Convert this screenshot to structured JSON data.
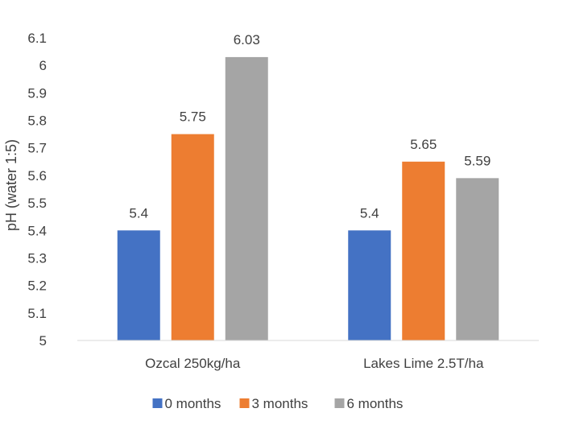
{
  "chart_data": {
    "type": "bar",
    "title": "",
    "xlabel": "",
    "ylabel": "pH (water 1:5)",
    "ylim": [
      5,
      6.1
    ],
    "yticks": [
      5,
      5.1,
      5.2,
      5.3,
      5.4,
      5.5,
      5.6,
      5.7,
      5.8,
      5.9,
      6,
      6.1
    ],
    "ytick_labels": [
      "5",
      "5.1",
      "5.2",
      "5.3",
      "5.4",
      "5.5",
      "5.6",
      "5.7",
      "5.8",
      "5.9",
      "6",
      "6.1"
    ],
    "grid": false,
    "legend_position": "bottom",
    "categories": [
      "Ozcal 250kg/ha",
      "Lakes Lime 2.5T/ha"
    ],
    "series": [
      {
        "name": "0 months",
        "color": "#4472C4",
        "values": [
          5.4,
          5.4
        ],
        "labels": [
          "5.4",
          "5.4"
        ]
      },
      {
        "name": "3 months",
        "color": "#ED7D31",
        "values": [
          5.75,
          5.65
        ],
        "labels": [
          "5.75",
          "5.65"
        ]
      },
      {
        "name": "6 months",
        "color": "#A5A5A5",
        "values": [
          6.03,
          5.59
        ],
        "labels": [
          "6.03",
          "5.59"
        ]
      }
    ]
  }
}
